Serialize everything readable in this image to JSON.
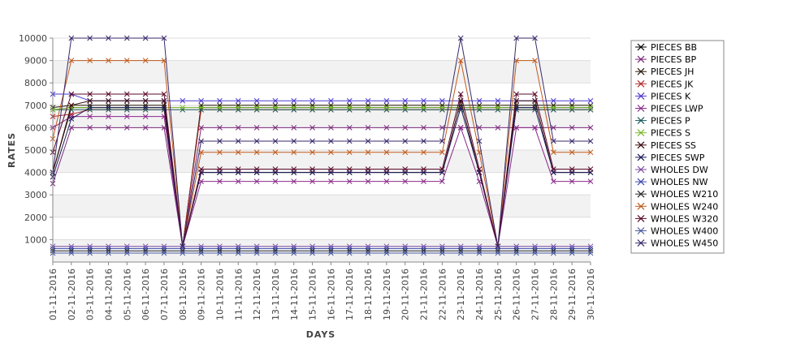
{
  "chart_data": {
    "type": "line",
    "xlabel": "DAYS",
    "ylabel": "RATES",
    "ylim": [
      0,
      10000
    ],
    "yticks": [
      1000,
      2000,
      3000,
      4000,
      5000,
      6000,
      7000,
      8000,
      9000,
      10000
    ],
    "grid": "alternating horizontal bands",
    "legend_position": "right",
    "categories": [
      "01-11-2016",
      "02-11-2016",
      "03-11-2016",
      "04-11-2016",
      "05-11-2016",
      "06-11-2016",
      "07-11-2016",
      "08-11-2016",
      "09-11-2016",
      "10-11-2016",
      "11-11-2016",
      "12-11-2016",
      "13-11-2016",
      "14-11-2016",
      "15-11-2016",
      "16-11-2016",
      "17-11-2016",
      "18-11-2016",
      "19-11-2016",
      "20-11-2016",
      "21-11-2016",
      "22-11-2016",
      "23-11-2016",
      "24-11-2016",
      "25-11-2016",
      "26-11-2016",
      "27-11-2016",
      "28-11-2016",
      "29-11-2016",
      "30-11-2016"
    ],
    "series": [
      {
        "name": "PIECES BB",
        "color": "#000000",
        "values": [
          4000,
          6900,
          6900,
          6900,
          6900,
          6900,
          6900,
          700,
          6900,
          6900,
          6900,
          6900,
          6900,
          6900,
          6900,
          6900,
          6900,
          6900,
          6900,
          6900,
          6900,
          6900,
          6900,
          6900,
          6900,
          6900,
          6900,
          6900,
          6900,
          6900
        ]
      },
      {
        "name": "PIECES BP",
        "color": "#7a2a7a",
        "values": [
          3500,
          6000,
          6000,
          6000,
          6000,
          6000,
          6000,
          700,
          6000,
          6000,
          6000,
          6000,
          6000,
          6000,
          6000,
          6000,
          6000,
          6000,
          6000,
          6000,
          6000,
          6000,
          6000,
          6000,
          6000,
          6000,
          6000,
          6000,
          6000,
          6000
        ]
      },
      {
        "name": "PIECES JH",
        "color": "#2a1a0a",
        "values": [
          6900,
          7000,
          7000,
          7000,
          7000,
          7000,
          7000,
          700,
          7000,
          7000,
          7000,
          7000,
          7000,
          7000,
          7000,
          7000,
          7000,
          7000,
          7000,
          7000,
          7000,
          7000,
          7000,
          7000,
          7000,
          7000,
          7000,
          7000,
          7000,
          7000
        ]
      },
      {
        "name": "PIECES JK",
        "color": "#b02a2a",
        "values": [
          6500,
          6600,
          6800,
          6800,
          6800,
          6800,
          6800,
          700,
          6800,
          6800,
          6800,
          6800,
          6800,
          6800,
          6800,
          6800,
          6800,
          6800,
          6800,
          6800,
          6800,
          6800,
          6800,
          6800,
          6800,
          6800,
          6800,
          6800,
          6800,
          6800
        ]
      },
      {
        "name": "PIECES K",
        "color": "#4a3ad0",
        "values": [
          7500,
          7500,
          7200,
          7200,
          7200,
          7200,
          7200,
          7200,
          7200,
          7200,
          7200,
          7200,
          7200,
          7200,
          7200,
          7200,
          7200,
          7200,
          7200,
          7200,
          7200,
          7200,
          7200,
          7200,
          7200,
          7200,
          7200,
          7200,
          7200,
          7200
        ]
      },
      {
        "name": "PIECES LWP",
        "color": "#8a2a8a",
        "values": [
          6000,
          6500,
          6500,
          6500,
          6500,
          6500,
          6500,
          700,
          3600,
          3600,
          3600,
          3600,
          3600,
          3600,
          3600,
          3600,
          3600,
          3600,
          3600,
          3600,
          3600,
          3600,
          6000,
          3600,
          700,
          6000,
          6000,
          3600,
          3600,
          3600
        ]
      },
      {
        "name": "PIECES P",
        "color": "#1a5a5a",
        "values": [
          6800,
          6800,
          6800,
          6800,
          6800,
          6800,
          6800,
          6800,
          6800,
          6800,
          6800,
          6800,
          6800,
          6800,
          6800,
          6800,
          6800,
          6800,
          6800,
          6800,
          6800,
          6800,
          6800,
          6800,
          6800,
          6800,
          6800,
          6800,
          6800,
          6800
        ]
      },
      {
        "name": "PIECES S",
        "color": "#7ab82a",
        "values": [
          6800,
          6900,
          6900,
          6900,
          6900,
          6900,
          6900,
          6900,
          6900,
          6900,
          6900,
          6900,
          6900,
          6900,
          6900,
          6900,
          6900,
          6900,
          6900,
          6900,
          6900,
          6900,
          6900,
          6900,
          6900,
          6900,
          6900,
          6900,
          6900,
          6900
        ]
      },
      {
        "name": "PIECES SS",
        "color": "#3a0a0a",
        "values": [
          4000,
          7000,
          7200,
          7200,
          7200,
          7200,
          7200,
          700,
          4000,
          4000,
          4000,
          4000,
          4000,
          4000,
          4000,
          4000,
          4000,
          4000,
          4000,
          4000,
          4000,
          4000,
          7200,
          4000,
          700,
          7200,
          7200,
          4000,
          4000,
          4000
        ]
      },
      {
        "name": "PIECES SWP",
        "color": "#1a1a5a",
        "values": [
          3800,
          6400,
          6900,
          6900,
          6900,
          6900,
          6900,
          700,
          4000,
          4000,
          4000,
          4000,
          4000,
          4000,
          4000,
          4000,
          4000,
          4000,
          4000,
          4000,
          4000,
          4000,
          6900,
          4000,
          700,
          6900,
          6900,
          4000,
          4000,
          4000
        ]
      },
      {
        "name": "WHOLES DW",
        "color": "#7a4aa0",
        "values": [
          700,
          700,
          700,
          700,
          700,
          700,
          700,
          700,
          700,
          700,
          700,
          700,
          700,
          700,
          700,
          700,
          700,
          700,
          700,
          700,
          700,
          700,
          700,
          700,
          700,
          700,
          700,
          700,
          700,
          700
        ]
      },
      {
        "name": "WHOLES NW",
        "color": "#3a4ab0",
        "values": [
          600,
          600,
          600,
          600,
          600,
          600,
          600,
          600,
          600,
          600,
          600,
          600,
          600,
          600,
          600,
          600,
          600,
          600,
          600,
          600,
          600,
          600,
          600,
          600,
          600,
          600,
          600,
          600,
          600,
          600
        ]
      },
      {
        "name": "WHOLES W210",
        "color": "#2a2a2a",
        "values": [
          500,
          500,
          500,
          500,
          500,
          500,
          500,
          500,
          500,
          500,
          500,
          500,
          500,
          500,
          500,
          500,
          500,
          500,
          500,
          500,
          500,
          500,
          500,
          500,
          500,
          500,
          500,
          500,
          500,
          500
        ]
      },
      {
        "name": "WHOLES W240",
        "color": "#c05a1a",
        "values": [
          5500,
          9000,
          9000,
          9000,
          9000,
          9000,
          9000,
          700,
          4900,
          4900,
          4900,
          4900,
          4900,
          4900,
          4900,
          4900,
          4900,
          4900,
          4900,
          4900,
          4900,
          4900,
          9000,
          4900,
          700,
          9000,
          9000,
          4900,
          4900,
          4900
        ]
      },
      {
        "name": "WHOLES W320",
        "color": "#5a0a2a",
        "values": [
          4900,
          7500,
          7500,
          7500,
          7500,
          7500,
          7500,
          700,
          4150,
          4150,
          4150,
          4150,
          4150,
          4150,
          4150,
          4150,
          4150,
          4150,
          4150,
          4150,
          4150,
          4150,
          7500,
          4150,
          700,
          7500,
          7500,
          4150,
          4150,
          4150
        ]
      },
      {
        "name": "WHOLES W400",
        "color": "#4a5aa0",
        "values": [
          400,
          400,
          400,
          400,
          400,
          400,
          400,
          400,
          400,
          400,
          400,
          400,
          400,
          400,
          400,
          400,
          400,
          400,
          400,
          400,
          400,
          400,
          400,
          400,
          400,
          400,
          400,
          400,
          400,
          400
        ]
      },
      {
        "name": "WHOLES W450",
        "color": "#3a2a6a",
        "values": [
          4000,
          10000,
          10000,
          10000,
          10000,
          10000,
          10000,
          700,
          5400,
          5400,
          5400,
          5400,
          5400,
          5400,
          5400,
          5400,
          5400,
          5400,
          5400,
          5400,
          5400,
          5400,
          10000,
          5400,
          700,
          10000,
          10000,
          5400,
          5400,
          5400
        ]
      }
    ]
  }
}
